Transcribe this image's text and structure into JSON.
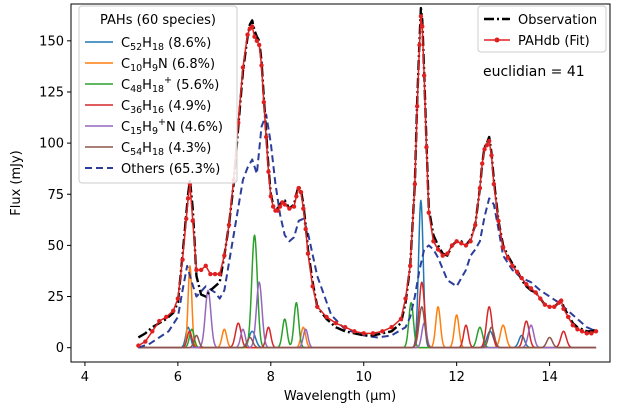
{
  "chart_data": {
    "type": "line",
    "xlabel": "Wavelength (μm)",
    "ylabel": "Flux (mJy)",
    "xlim": [
      3.7,
      15.3
    ],
    "ylim": [
      -7,
      168
    ],
    "xticks": [
      4,
      6,
      8,
      10,
      12,
      14
    ],
    "yticks": [
      0,
      25,
      50,
      75,
      100,
      125,
      150
    ],
    "grid": false,
    "annotation": "euclidian = 41",
    "legend_left": {
      "placement": "top-left",
      "title": "PAHs (60 species)",
      "entries": [
        {
          "base": "C",
          "sub1": "52",
          "mid": "H",
          "sub2": "18",
          "sup": "",
          "mid2": "",
          "pct": " (8.6%)",
          "series": 2
        },
        {
          "base": "C",
          "sub1": "10",
          "mid": "H",
          "sub2": "9",
          "sup": "",
          "mid2": "N",
          "pct": " (6.8%)",
          "series": 3
        },
        {
          "base": "C",
          "sub1": "48",
          "mid": "H",
          "sub2": "18",
          "sup": "+",
          "mid2": "",
          "pct": " (5.6%)",
          "series": 4
        },
        {
          "base": "C",
          "sub1": "36",
          "mid": "H",
          "sub2": "16",
          "sup": "",
          "mid2": "",
          "pct": " (4.9%)",
          "series": 5
        },
        {
          "base": "C",
          "sub1": "15",
          "mid": "H",
          "sub2": "9",
          "sup": "+",
          "mid2": "N",
          "pct": " (4.6%)",
          "series": 6
        },
        {
          "base": "C",
          "sub1": "54",
          "mid": "H",
          "sub2": "18",
          "sup": "",
          "mid2": "",
          "pct": " (4.3%)",
          "series": 7
        },
        {
          "base": "Others",
          "sub1": "",
          "mid": "",
          "sub2": "",
          "sup": "",
          "mid2": "",
          "pct": " (65.3%)",
          "series": 8
        }
      ]
    },
    "legend_right": {
      "placement": "top-right",
      "entries": [
        {
          "label": "Observation",
          "series": 0
        },
        {
          "label": "PAHdb (Fit)",
          "series": 1
        }
      ]
    },
    "series": [
      {
        "name": "Observation",
        "color": "#000000",
        "style": "dashdot",
        "width": 2.4,
        "x": [
          5.15,
          5.3,
          5.45,
          5.6,
          5.75,
          5.9,
          6.0,
          6.1,
          6.18,
          6.22,
          6.26,
          6.32,
          6.4,
          6.5,
          6.6,
          6.7,
          6.8,
          6.9,
          7.0,
          7.1,
          7.2,
          7.3,
          7.4,
          7.5,
          7.55,
          7.6,
          7.65,
          7.7,
          7.75,
          7.8,
          7.85,
          7.9,
          7.95,
          8.0,
          8.05,
          8.1,
          8.15,
          8.2,
          8.25,
          8.3,
          8.4,
          8.5,
          8.55,
          8.6,
          8.65,
          8.7,
          8.75,
          8.8,
          8.9,
          9.0,
          9.2,
          9.4,
          9.6,
          9.8,
          10.0,
          10.2,
          10.4,
          10.6,
          10.8,
          10.9,
          11.0,
          11.1,
          11.15,
          11.2,
          11.23,
          11.26,
          11.3,
          11.35,
          11.4,
          11.5,
          11.6,
          11.7,
          11.8,
          11.9,
          12.0,
          12.1,
          12.2,
          12.3,
          12.4,
          12.5,
          12.55,
          12.6,
          12.65,
          12.7,
          12.75,
          12.8,
          12.9,
          13.0,
          13.1,
          13.2,
          13.3,
          13.4,
          13.5,
          13.6,
          13.7,
          13.8,
          13.9,
          14.0,
          14.1,
          14.2,
          14.25,
          14.3,
          14.4,
          14.5,
          14.6,
          14.7,
          14.8,
          14.9,
          15.0
        ],
        "y": [
          5,
          7,
          10,
          12,
          14,
          17,
          22,
          45,
          65,
          75,
          82,
          68,
          35,
          26,
          25,
          28,
          30,
          32,
          45,
          60,
          80,
          108,
          135,
          152,
          158,
          160,
          155,
          152,
          150,
          140,
          122,
          105,
          88,
          75,
          70,
          68,
          68,
          70,
          72,
          72,
          68,
          70,
          75,
          79,
          77,
          70,
          60,
          48,
          32,
          20,
          14,
          10,
          8,
          7,
          6,
          6,
          7,
          8,
          12,
          22,
          40,
          80,
          120,
          150,
          166,
          160,
          135,
          100,
          68,
          55,
          50,
          46,
          45,
          50,
          52,
          52,
          50,
          53,
          60,
          78,
          90,
          98,
          100,
          103,
          95,
          82,
          62,
          50,
          45,
          41,
          38,
          33,
          30,
          28,
          27,
          24,
          21,
          20,
          20,
          22,
          24,
          20,
          16,
          12,
          10,
          9,
          8,
          8,
          9
        ]
      },
      {
        "name": "PAHdb (Fit)",
        "color": "#e02020",
        "style": "solid",
        "marker": true,
        "width": 1.5,
        "x": [
          5.15,
          5.3,
          5.45,
          5.6,
          5.75,
          5.9,
          6.0,
          6.1,
          6.18,
          6.22,
          6.26,
          6.32,
          6.4,
          6.5,
          6.6,
          6.7,
          6.8,
          6.9,
          7.0,
          7.1,
          7.2,
          7.3,
          7.4,
          7.5,
          7.55,
          7.6,
          7.65,
          7.7,
          7.75,
          7.8,
          7.85,
          7.9,
          7.95,
          8.0,
          8.05,
          8.1,
          8.15,
          8.2,
          8.25,
          8.3,
          8.4,
          8.5,
          8.55,
          8.6,
          8.65,
          8.7,
          8.75,
          8.8,
          8.9,
          9.0,
          9.2,
          9.4,
          9.6,
          9.8,
          10.0,
          10.2,
          10.4,
          10.6,
          10.8,
          10.9,
          11.0,
          11.1,
          11.15,
          11.2,
          11.23,
          11.26,
          11.3,
          11.35,
          11.4,
          11.5,
          11.6,
          11.7,
          11.8,
          11.9,
          12.0,
          12.1,
          12.2,
          12.3,
          12.4,
          12.5,
          12.55,
          12.6,
          12.65,
          12.7,
          12.75,
          12.8,
          12.9,
          13.0,
          13.1,
          13.2,
          13.3,
          13.4,
          13.5,
          13.6,
          13.7,
          13.8,
          13.9,
          14.0,
          14.1,
          14.2,
          14.25,
          14.3,
          14.4,
          14.5,
          14.6,
          14.7,
          14.8,
          14.9,
          15.0
        ],
        "y": [
          1,
          3,
          8,
          13,
          15,
          18,
          24,
          43,
          63,
          73,
          80,
          62,
          38,
          38,
          40,
          36,
          36,
          36,
          45,
          60,
          82,
          110,
          137,
          153,
          156,
          157,
          152,
          150,
          148,
          138,
          120,
          103,
          86,
          74,
          69,
          67,
          67,
          69,
          71,
          70,
          68,
          69,
          74,
          78,
          76,
          68,
          58,
          46,
          30,
          20,
          15,
          12,
          10,
          8,
          7,
          7,
          8,
          10,
          14,
          24,
          40,
          80,
          118,
          148,
          162,
          157,
          133,
          98,
          66,
          52,
          48,
          45,
          46,
          50,
          52,
          51,
          50,
          52,
          60,
          78,
          90,
          97,
          99,
          101,
          94,
          80,
          62,
          49,
          44,
          40,
          37,
          34,
          31,
          29,
          27,
          24,
          21,
          20,
          20,
          22,
          23,
          19,
          15,
          11,
          9,
          8,
          7,
          7,
          8
        ]
      },
      {
        "name": "C52H18",
        "color": "#1f77b4",
        "style": "solid",
        "width": 1.5,
        "peaks": [
          [
            6.22,
            10,
            0.05
          ],
          [
            7.6,
            8,
            0.07
          ],
          [
            11.23,
            72,
            0.05
          ],
          [
            12.72,
            8,
            0.07
          ],
          [
            13.4,
            6,
            0.06
          ]
        ]
      },
      {
        "name": "C10H9N",
        "color": "#ff7f0e",
        "style": "solid",
        "width": 1.5,
        "peaks": [
          [
            6.26,
            40,
            0.04
          ],
          [
            7.0,
            9,
            0.05
          ],
          [
            8.7,
            10,
            0.05
          ],
          [
            11.6,
            20,
            0.05
          ],
          [
            12.0,
            16,
            0.05
          ],
          [
            13.0,
            11,
            0.06
          ]
        ]
      },
      {
        "name": "C48H18+",
        "color": "#2ca02c",
        "style": "solid",
        "width": 1.5,
        "peaks": [
          [
            6.3,
            9,
            0.05
          ],
          [
            7.65,
            55,
            0.06
          ],
          [
            8.3,
            14,
            0.05
          ],
          [
            8.55,
            22,
            0.05
          ],
          [
            11.02,
            22,
            0.05
          ],
          [
            12.5,
            10,
            0.06
          ]
        ]
      },
      {
        "name": "C36H16",
        "color": "#d62728",
        "style": "solid",
        "width": 1.5,
        "peaks": [
          [
            6.25,
            8,
            0.05
          ],
          [
            7.3,
            12,
            0.06
          ],
          [
            7.95,
            10,
            0.05
          ],
          [
            11.25,
            32,
            0.06
          ],
          [
            12.2,
            11,
            0.05
          ],
          [
            12.7,
            20,
            0.06
          ],
          [
            13.5,
            13,
            0.06
          ],
          [
            14.3,
            8,
            0.06
          ]
        ]
      },
      {
        "name": "C15H9N+",
        "color": "#9467bd",
        "style": "solid",
        "width": 1.5,
        "peaks": [
          [
            6.65,
            28,
            0.06
          ],
          [
            7.4,
            9,
            0.05
          ],
          [
            7.75,
            32,
            0.06
          ],
          [
            8.75,
            9,
            0.05
          ],
          [
            11.3,
            12,
            0.05
          ],
          [
            13.6,
            11,
            0.06
          ]
        ]
      },
      {
        "name": "C54H18",
        "color": "#8c564b",
        "style": "solid",
        "width": 1.5,
        "peaks": [
          [
            6.4,
            6,
            0.05
          ],
          [
            7.55,
            5,
            0.06
          ],
          [
            11.25,
            20,
            0.06
          ],
          [
            12.75,
            10,
            0.06
          ],
          [
            14.0,
            5,
            0.06
          ]
        ]
      },
      {
        "name": "Others",
        "color": "#2c3e99",
        "style": "dashed",
        "width": 2.0,
        "x": [
          5.15,
          5.4,
          5.6,
          5.8,
          6.0,
          6.1,
          6.2,
          6.3,
          6.4,
          6.6,
          6.8,
          6.9,
          7.0,
          7.2,
          7.4,
          7.5,
          7.6,
          7.7,
          7.8,
          7.9,
          8.0,
          8.1,
          8.2,
          8.3,
          8.4,
          8.5,
          8.6,
          8.7,
          8.8,
          9.0,
          9.3,
          9.6,
          10.0,
          10.3,
          10.6,
          10.9,
          11.0,
          11.1,
          11.2,
          11.3,
          11.4,
          11.5,
          11.6,
          11.8,
          12.0,
          12.2,
          12.3,
          12.4,
          12.5,
          12.6,
          12.7,
          12.8,
          12.9,
          13.0,
          13.2,
          13.4,
          13.6,
          13.8,
          14.0,
          14.2,
          14.4,
          14.6,
          14.8,
          15.0
        ],
        "y": [
          0,
          2,
          5,
          8,
          15,
          28,
          40,
          32,
          25,
          30,
          27,
          24,
          28,
          55,
          82,
          88,
          92,
          85,
          108,
          114,
          100,
          80,
          65,
          55,
          52,
          54,
          62,
          63,
          56,
          35,
          16,
          9,
          6,
          5,
          6,
          10,
          15,
          25,
          38,
          48,
          50,
          48,
          44,
          33,
          30,
          38,
          45,
          48,
          52,
          64,
          73,
          70,
          58,
          45,
          38,
          34,
          32,
          28,
          25,
          22,
          18,
          14,
          10,
          8
        ]
      }
    ]
  }
}
